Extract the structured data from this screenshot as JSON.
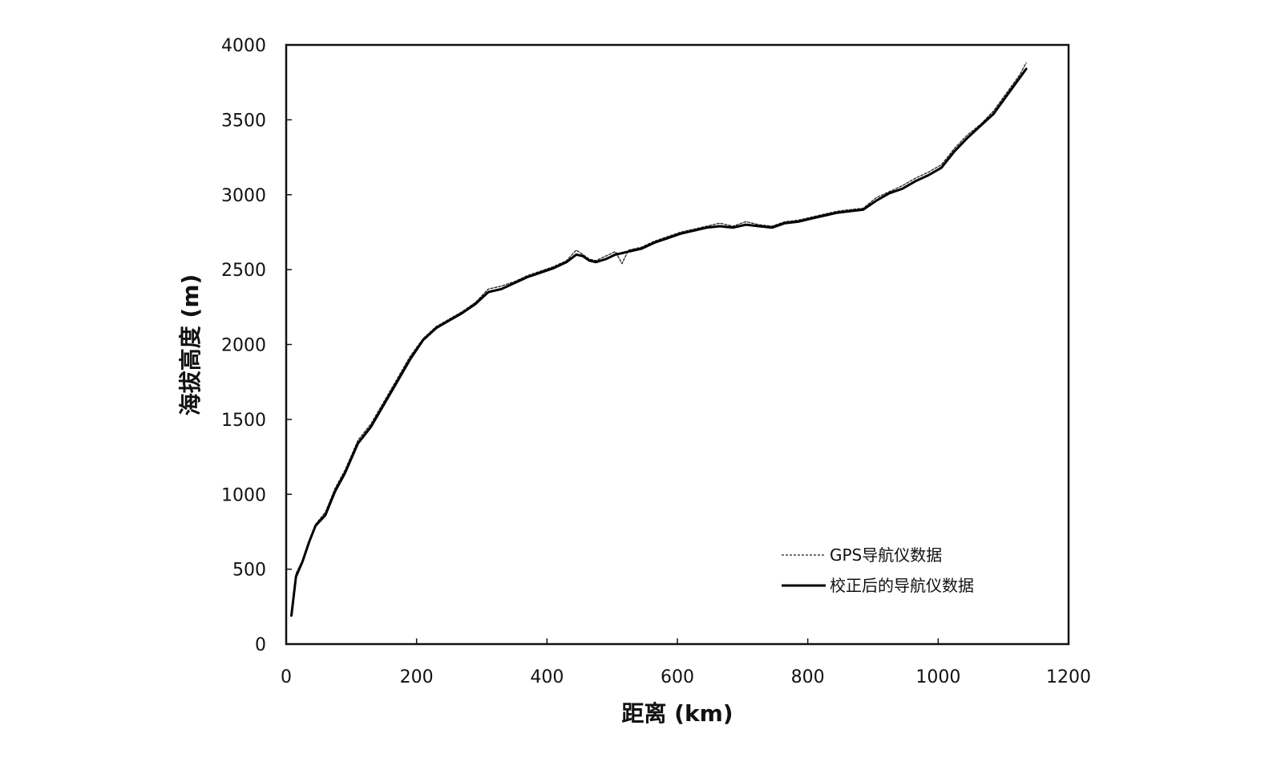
{
  "chart_data": {
    "type": "line",
    "title": "",
    "xlabel": "距离 (km)",
    "ylabel": "海拔高度 (m)",
    "xlim": [
      0,
      1200
    ],
    "ylim": [
      0,
      4000
    ],
    "xticks": [
      0,
      200,
      400,
      600,
      800,
      1000,
      1200
    ],
    "yticks": [
      0,
      500,
      1000,
      1500,
      2000,
      2500,
      3000,
      3500,
      4000
    ],
    "xtick_labels": [
      "0",
      "200",
      "400",
      "600",
      "800",
      "1000",
      "1200"
    ],
    "ytick_labels": [
      "0",
      "500",
      "1000",
      "1500",
      "2000",
      "2500",
      "3000",
      "3500",
      "4000"
    ],
    "grid": false,
    "legend_position": "bottom-right",
    "series": [
      {
        "name": "GPS导航仪数据",
        "style": "dashed",
        "color": "#222222",
        "x": [
          8,
          15,
          25,
          35,
          45,
          60,
          75,
          90,
          110,
          130,
          150,
          170,
          190,
          210,
          230,
          250,
          270,
          290,
          310,
          330,
          350,
          370,
          390,
          410,
          430,
          445,
          455,
          465,
          475,
          490,
          505,
          515,
          525,
          545,
          565,
          585,
          605,
          625,
          645,
          665,
          685,
          705,
          725,
          745,
          765,
          785,
          805,
          825,
          845,
          865,
          885,
          905,
          925,
          945,
          965,
          985,
          1005,
          1025,
          1045,
          1065,
          1085,
          1105,
          1125,
          1135
        ],
        "y": [
          210,
          470,
          560,
          690,
          800,
          880,
          1040,
          1160,
          1360,
          1470,
          1620,
          1770,
          1920,
          2040,
          2120,
          2170,
          2220,
          2280,
          2370,
          2390,
          2420,
          2460,
          2490,
          2520,
          2560,
          2630,
          2600,
          2570,
          2560,
          2590,
          2620,
          2540,
          2630,
          2650,
          2690,
          2720,
          2750,
          2770,
          2790,
          2810,
          2790,
          2820,
          2800,
          2790,
          2820,
          2830,
          2850,
          2870,
          2890,
          2900,
          2910,
          2980,
          3020,
          3060,
          3110,
          3150,
          3200,
          3310,
          3400,
          3470,
          3560,
          3680,
          3800,
          3880
        ]
      },
      {
        "name": "校正后的导航仪数据",
        "style": "solid",
        "color": "#000000",
        "x": [
          8,
          15,
          25,
          35,
          45,
          60,
          75,
          90,
          110,
          130,
          150,
          170,
          190,
          210,
          230,
          250,
          270,
          290,
          310,
          330,
          350,
          370,
          390,
          410,
          430,
          445,
          455,
          465,
          475,
          490,
          505,
          515,
          525,
          545,
          565,
          585,
          605,
          625,
          645,
          665,
          685,
          705,
          725,
          745,
          765,
          785,
          805,
          825,
          845,
          865,
          885,
          905,
          925,
          945,
          965,
          985,
          1005,
          1025,
          1045,
          1065,
          1085,
          1105,
          1125,
          1135
        ],
        "y": [
          190,
          450,
          550,
          680,
          790,
          860,
          1020,
          1140,
          1340,
          1450,
          1600,
          1750,
          1900,
          2030,
          2110,
          2160,
          2210,
          2270,
          2350,
          2370,
          2410,
          2450,
          2480,
          2510,
          2550,
          2600,
          2590,
          2560,
          2550,
          2570,
          2600,
          2610,
          2620,
          2640,
          2680,
          2710,
          2740,
          2760,
          2780,
          2790,
          2780,
          2800,
          2790,
          2780,
          2810,
          2820,
          2840,
          2860,
          2880,
          2890,
          2900,
          2960,
          3010,
          3040,
          3090,
          3130,
          3180,
          3290,
          3380,
          3460,
          3540,
          3660,
          3780,
          3840
        ]
      }
    ]
  }
}
